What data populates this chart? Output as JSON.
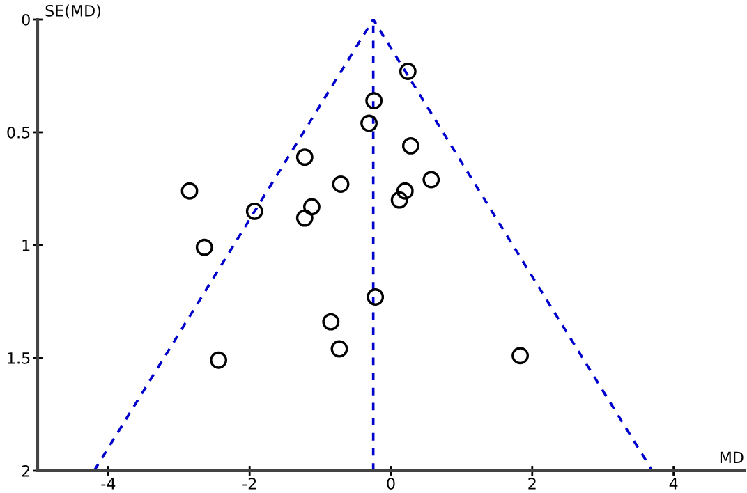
{
  "chart_data": {
    "type": "scatter",
    "xlabel": "MD",
    "ylabel": "SE(MD)",
    "xlim": [
      -5,
      5
    ],
    "ylim": [
      2,
      0
    ],
    "xticks": [
      -4,
      -2,
      0,
      2,
      4
    ],
    "yticks": [
      0,
      0.5,
      1,
      1.5,
      2
    ],
    "grid": false,
    "legend": false,
    "series": [
      {
        "color": "#000000",
        "marker": "circle",
        "x": [
          0.24,
          -0.24,
          -0.31,
          0.28,
          0.57,
          0.2,
          0.12,
          -2.85,
          -1.22,
          -0.71,
          -1.93,
          -1.12,
          -1.22,
          -2.64,
          -0.22,
          -0.85,
          -0.73,
          -2.44,
          1.83
        ],
        "values": [
          0.23,
          0.36,
          0.46,
          0.56,
          0.71,
          0.76,
          0.8,
          0.76,
          0.61,
          0.73,
          0.85,
          0.83,
          0.88,
          1.01,
          1.23,
          1.34,
          1.46,
          1.51,
          1.49
        ]
      },
      {
        "type": "line",
        "color": "#0000cc",
        "line_style": "dashed",
        "marker": "none",
        "x": [
          -4.2,
          -0.25,
          3.7
        ],
        "values": [
          2,
          0,
          2
        ]
      }
    ],
    "ref_lines": [
      {
        "axis": "x",
        "value": -0.25,
        "color": "#0000cc",
        "line_style": "dashed"
      }
    ]
  }
}
